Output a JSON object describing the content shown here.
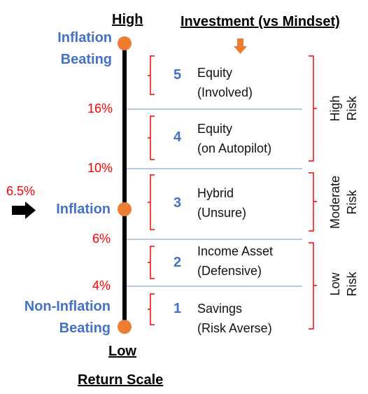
{
  "headers": {
    "high": "High",
    "investment": "Investment (vs Mindset)",
    "low": "Low",
    "return_scale": "Return Scale"
  },
  "scale_labels": {
    "inflation_beating_line1": "Inflation",
    "inflation_beating_line2": "Beating",
    "inflation": "Inflation",
    "non_inflation_line1": "Non-Inflation",
    "non_inflation_line2": "Beating"
  },
  "inflation_rate": "6.5%",
  "thresholds": [
    "16%",
    "10%",
    "6%",
    "4%"
  ],
  "levels": [
    {
      "number": "5",
      "line1": "Equity",
      "line2": "(Involved)"
    },
    {
      "number": "4",
      "line1": "Equity",
      "line2": "(on Autopilot)"
    },
    {
      "number": "3",
      "line1": "Hybrid",
      "line2": "(Unsure)"
    },
    {
      "number": "2",
      "line1": "Income Asset",
      "line2": "(Defensive)"
    },
    {
      "number": "1",
      "line1": "Savings",
      "line2": "(Risk Averse)"
    }
  ],
  "risk_groups": [
    {
      "line1": "High",
      "line2": "Risk"
    },
    {
      "line1": "Moderate",
      "line2": "Risk"
    },
    {
      "line1": "Low",
      "line2": "Risk"
    }
  ],
  "colors": {
    "scale_line": "#000000",
    "marker": "#ed7d31",
    "threshold_text": "#ff0000",
    "brace": "#ff0000",
    "divider": "#8eaadb",
    "label_blue": "#4472c4"
  },
  "icons": [
    "down-arrow-icon",
    "right-arrow-icon"
  ]
}
